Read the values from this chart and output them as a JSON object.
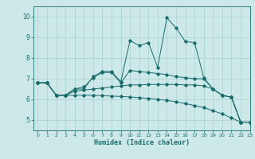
{
  "xlabel": "Humidex (Indice chaleur)",
  "xlim": [
    -0.5,
    23
  ],
  "ylim": [
    4.5,
    10.5
  ],
  "yticks": [
    5,
    6,
    7,
    8,
    9,
    10
  ],
  "xticks": [
    0,
    1,
    2,
    3,
    4,
    5,
    6,
    7,
    8,
    9,
    10,
    11,
    12,
    13,
    14,
    15,
    16,
    17,
    18,
    19,
    20,
    21,
    22,
    23
  ],
  "bg_color": "#cce8e8",
  "line_color": "#1a6b6b",
  "grid_color": "#a8d0d0",
  "series": [
    [
      6.8,
      6.8,
      6.2,
      6.2,
      6.5,
      6.5,
      7.1,
      7.35,
      7.35,
      6.85,
      8.85,
      8.6,
      8.75,
      7.55,
      9.95,
      9.45,
      8.8,
      8.75,
      7.05,
      6.5,
      6.2,
      6.1,
      4.9,
      4.9
    ],
    [
      6.8,
      6.8,
      6.2,
      6.2,
      6.5,
      6.6,
      7.05,
      7.3,
      7.3,
      6.8,
      7.4,
      7.35,
      7.3,
      7.25,
      7.2,
      7.1,
      7.05,
      7.0,
      7.0,
      6.5,
      6.2,
      6.1,
      4.9,
      4.9
    ],
    [
      6.8,
      6.8,
      6.2,
      6.2,
      6.4,
      6.45,
      6.5,
      6.55,
      6.6,
      6.65,
      6.7,
      6.7,
      6.72,
      6.72,
      6.72,
      6.72,
      6.7,
      6.7,
      6.65,
      6.5,
      6.2,
      6.1,
      4.9,
      4.9
    ],
    [
      6.8,
      6.8,
      6.2,
      6.2,
      6.2,
      6.2,
      6.2,
      6.18,
      6.16,
      6.14,
      6.12,
      6.08,
      6.05,
      6.0,
      5.95,
      5.88,
      5.8,
      5.7,
      5.6,
      5.45,
      5.3,
      5.1,
      4.9,
      4.9
    ]
  ]
}
